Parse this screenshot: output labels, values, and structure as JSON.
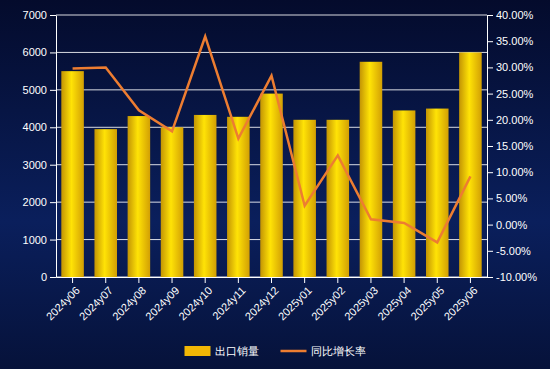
{
  "chart_data": {
    "type": "bar",
    "categories": [
      "2024y06",
      "2024y07",
      "2024y08",
      "2024y09",
      "2024y10",
      "2024y11",
      "2024y12",
      "2025y01",
      "2025y02",
      "2025y03",
      "2025y04",
      "2025y05",
      "2025y06"
    ],
    "series": [
      {
        "name": "出口销量",
        "type": "bar",
        "color": "#f2b705",
        "values": [
          5500,
          3950,
          4300,
          4000,
          4330,
          4280,
          4900,
          4200,
          4200,
          5750,
          4450,
          4500,
          6000
        ]
      },
      {
        "name": "同比增长率",
        "type": "line",
        "color": "#ed7d31",
        "axis": "y2",
        "values": [
          29.8,
          30.0,
          21.8,
          17.8,
          35.9,
          16.4,
          28.4,
          3.6,
          13.2,
          1.0,
          0.3,
          -3.4,
          9.2
        ]
      }
    ],
    "ylim": [
      0,
      7000
    ],
    "yticks": [
      0,
      1000,
      2000,
      3000,
      4000,
      5000,
      6000,
      7000
    ],
    "y2lim": [
      -10,
      40
    ],
    "y2ticks": [
      {
        "value": -10,
        "label": "-10.00%"
      },
      {
        "value": -5,
        "label": "-5.00%"
      },
      {
        "value": 0,
        "label": "0.00%"
      },
      {
        "value": 5,
        "label": "5.00%"
      },
      {
        "value": 10,
        "label": "10.00%"
      },
      {
        "value": 15,
        "label": "15.00%"
      },
      {
        "value": 20,
        "label": "20.00%"
      },
      {
        "value": 25,
        "label": "25.00%"
      },
      {
        "value": 30,
        "label": "30.00%"
      },
      {
        "value": 35,
        "label": "35.00%"
      },
      {
        "value": 40,
        "label": "40.00%"
      }
    ],
    "grid": true,
    "legend": "bottom"
  }
}
